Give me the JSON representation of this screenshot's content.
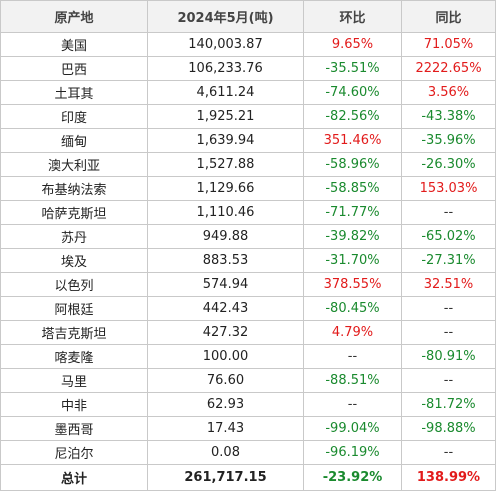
{
  "headers": [
    "原产地",
    "2024年5月(吨)",
    "环比",
    "同比"
  ],
  "rows": [
    {
      "origin": "美国",
      "volume": "140,003.87",
      "mom": "9.65%",
      "mom_tone": "pos",
      "yoy": "71.05%",
      "yoy_tone": "pos"
    },
    {
      "origin": "巴西",
      "volume": "106,233.76",
      "mom": "-35.51%",
      "mom_tone": "neg",
      "yoy": "2222.65%",
      "yoy_tone": "pos"
    },
    {
      "origin": "土耳其",
      "volume": "4,611.24",
      "mom": "-74.60%",
      "mom_tone": "neg",
      "yoy": "3.56%",
      "yoy_tone": "pos"
    },
    {
      "origin": "印度",
      "volume": "1,925.21",
      "mom": "-82.56%",
      "mom_tone": "neg",
      "yoy": "-43.38%",
      "yoy_tone": "neg"
    },
    {
      "origin": "缅甸",
      "volume": "1,639.94",
      "mom": "351.46%",
      "mom_tone": "pos",
      "yoy": "-35.96%",
      "yoy_tone": "neg"
    },
    {
      "origin": "澳大利亚",
      "volume": "1,527.88",
      "mom": "-58.96%",
      "mom_tone": "neg",
      "yoy": "-26.30%",
      "yoy_tone": "neg"
    },
    {
      "origin": "布基纳法索",
      "volume": "1,129.66",
      "mom": "-58.85%",
      "mom_tone": "neg",
      "yoy": "153.03%",
      "yoy_tone": "pos"
    },
    {
      "origin": "哈萨克斯坦",
      "volume": "1,110.46",
      "mom": "-71.77%",
      "mom_tone": "neg",
      "yoy": "--",
      "yoy_tone": "dash"
    },
    {
      "origin": "苏丹",
      "volume": "949.88",
      "mom": "-39.82%",
      "mom_tone": "neg",
      "yoy": "-65.02%",
      "yoy_tone": "neg"
    },
    {
      "origin": "埃及",
      "volume": "883.53",
      "mom": "-31.70%",
      "mom_tone": "neg",
      "yoy": "-27.31%",
      "yoy_tone": "neg"
    },
    {
      "origin": "以色列",
      "volume": "574.94",
      "mom": "378.55%",
      "mom_tone": "pos",
      "yoy": "32.51%",
      "yoy_tone": "pos"
    },
    {
      "origin": "阿根廷",
      "volume": "442.43",
      "mom": "-80.45%",
      "mom_tone": "neg",
      "yoy": "--",
      "yoy_tone": "dash"
    },
    {
      "origin": "塔吉克斯坦",
      "volume": "427.32",
      "mom": "4.79%",
      "mom_tone": "pos",
      "yoy": "--",
      "yoy_tone": "dash"
    },
    {
      "origin": "喀麦隆",
      "volume": "100.00",
      "mom": "--",
      "mom_tone": "dash",
      "yoy": "-80.91%",
      "yoy_tone": "neg"
    },
    {
      "origin": "马里",
      "volume": "76.60",
      "mom": "-88.51%",
      "mom_tone": "neg",
      "yoy": "--",
      "yoy_tone": "dash"
    },
    {
      "origin": "中非",
      "volume": "62.93",
      "mom": "--",
      "mom_tone": "dash",
      "yoy": "-81.72%",
      "yoy_tone": "neg"
    },
    {
      "origin": "墨西哥",
      "volume": "17.43",
      "mom": "-99.04%",
      "mom_tone": "neg",
      "yoy": "-98.88%",
      "yoy_tone": "neg"
    },
    {
      "origin": "尼泊尔",
      "volume": "0.08",
      "mom": "-96.19%",
      "mom_tone": "neg",
      "yoy": "--",
      "yoy_tone": "dash"
    }
  ],
  "total": {
    "origin": "总计",
    "volume": "261,717.15",
    "mom": "-23.92%",
    "mom_tone": "neg",
    "yoy": "138.99%",
    "yoy_tone": "pos"
  },
  "colors": {
    "positive": "#e21b1b",
    "negative": "#1a8a2e",
    "header_bg": "#f2f2f2",
    "border": "#c9c9c9"
  }
}
